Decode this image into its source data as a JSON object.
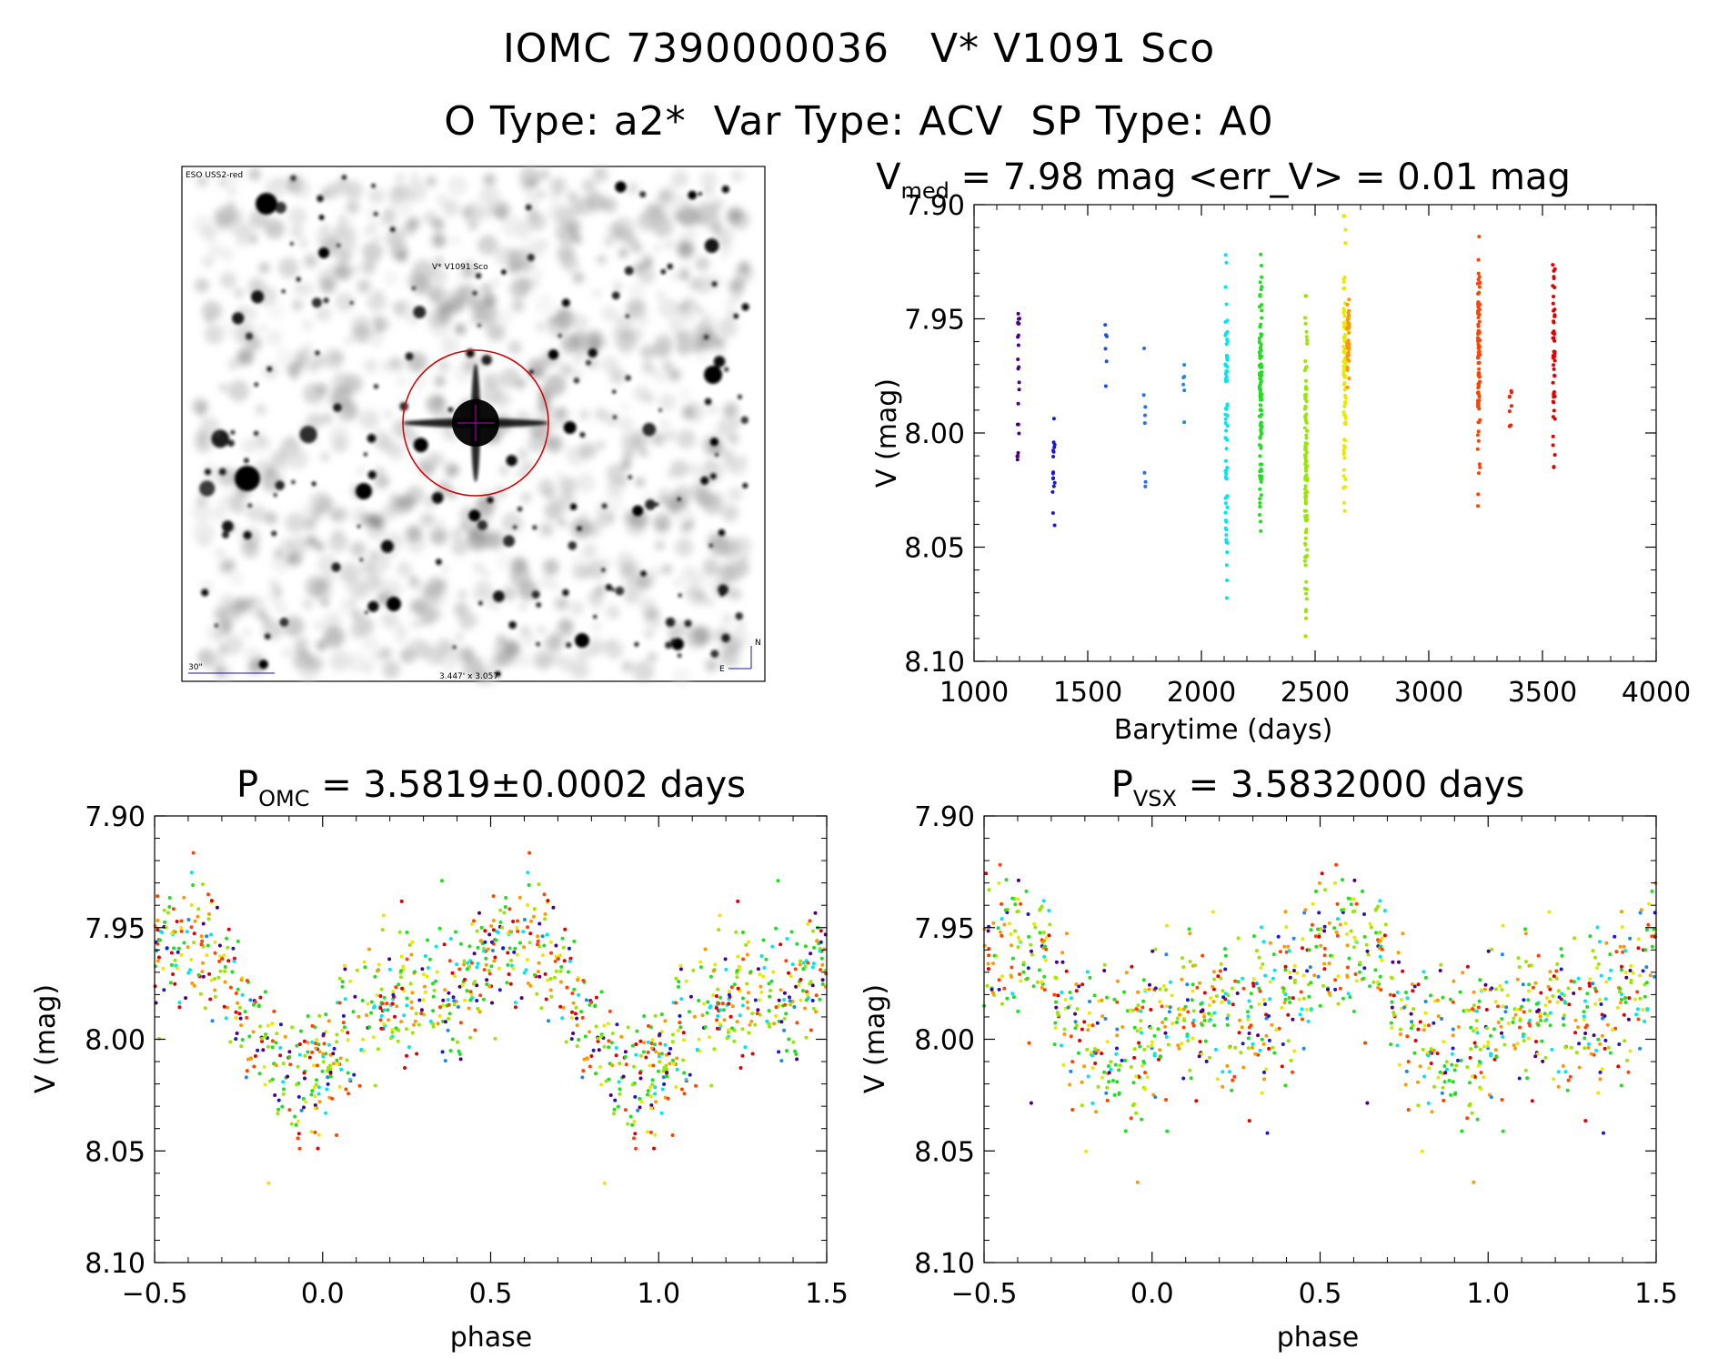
{
  "header": {
    "line1": "IOMC 7390000036   V* V1091 Sco",
    "line2": "O Type: a2*  Var Type: ACV  SP Type: A0"
  },
  "finder": {
    "survey_label": "ESO USS2-red",
    "target_label": "V* V1091 Sco",
    "scale_label": "30\"",
    "fov_label": "3.447' x 3.057'",
    "north_label": "N",
    "east_label": "E",
    "circle_color": "#cc0000"
  },
  "chart_data": [
    {
      "id": "lightcurve",
      "type": "scatter",
      "title_parts": {
        "main": "V",
        "sub": "med",
        "rest": " = 7.98 mag <err_V> = 0.01 mag"
      },
      "xlabel": "Barytime (days)",
      "ylabel": "V (mag)",
      "xlim": [
        1000,
        4000
      ],
      "ylim": [
        8.1,
        7.9
      ],
      "y_inverted": true,
      "xticks": [
        1000,
        1500,
        2000,
        2500,
        3000,
        3500,
        4000
      ],
      "yticks": [
        7.9,
        7.95,
        8.0,
        8.05,
        8.1
      ],
      "colorscale": "time (purple to red)",
      "groups": [
        {
          "x": 1195,
          "n": 22,
          "ylo": 7.905,
          "yhi": 8.023,
          "color": "#4b0082"
        },
        {
          "x": 1350,
          "n": 16,
          "ylo": 7.978,
          "yhi": 8.042,
          "color": "#1a1acc"
        },
        {
          "x": 1580,
          "n": 6,
          "ylo": 7.93,
          "yhi": 8.002,
          "color": "#1f4fe0"
        },
        {
          "x": 1750,
          "n": 8,
          "ylo": 7.939,
          "yhi": 8.037,
          "color": "#2a6ef0"
        },
        {
          "x": 1925,
          "n": 6,
          "ylo": 7.961,
          "yhi": 7.999,
          "color": "#1e88e5"
        },
        {
          "x": 2110,
          "n": 70,
          "ylo": 7.922,
          "yhi": 8.078,
          "color": "#00e5ee"
        },
        {
          "x": 2260,
          "n": 110,
          "ylo": 7.917,
          "yhi": 8.043,
          "color": "#22dd22"
        },
        {
          "x": 2460,
          "n": 110,
          "ylo": 7.94,
          "yhi": 8.089,
          "color": "#99e600"
        },
        {
          "x": 2630,
          "n": 90,
          "ylo": 7.905,
          "yhi": 8.038,
          "color": "#e8e800"
        },
        {
          "x": 2645,
          "n": 40,
          "ylo": 7.935,
          "yhi": 7.98,
          "color": "#ff9900"
        },
        {
          "x": 3220,
          "n": 90,
          "ylo": 7.913,
          "yhi": 8.032,
          "color": "#ff4400"
        },
        {
          "x": 3360,
          "n": 8,
          "ylo": 7.972,
          "yhi": 8.011,
          "color": "#ee2200"
        },
        {
          "x": 3550,
          "n": 50,
          "ylo": 7.907,
          "yhi": 8.015,
          "color": "#e00000"
        }
      ]
    },
    {
      "id": "phase_omc",
      "type": "scatter",
      "title_parts": {
        "main": "P",
        "sub": "OMC",
        "rest": " = 3.5819±0.0002 days"
      },
      "xlabel": "phase",
      "ylabel": "V (mag)",
      "xlim": [
        -0.5,
        1.5
      ],
      "ylim": [
        8.1,
        7.9
      ],
      "y_inverted": true,
      "xticks": [
        -0.5,
        0.0,
        0.5,
        1.0,
        1.5
      ],
      "yticks": [
        7.9,
        7.95,
        8.0,
        8.05,
        8.1
      ],
      "period_days": 3.5819,
      "model": {
        "mean": 7.985,
        "amplitude": 0.028,
        "min_phase": 0.0,
        "max_phase": 0.65,
        "scatter": 0.022
      },
      "points_per_cycle": 560
    },
    {
      "id": "phase_vsx",
      "type": "scatter",
      "title_parts": {
        "main": "P",
        "sub": "VSX",
        "rest": " = 3.5832000 days"
      },
      "xlabel": "phase",
      "ylabel": "V (mag)",
      "xlim": [
        -0.5,
        1.5
      ],
      "ylim": [
        8.1,
        7.9
      ],
      "y_inverted": true,
      "xticks": [
        -0.5,
        0.0,
        0.5,
        1.0,
        1.5
      ],
      "yticks": [
        7.9,
        7.95,
        8.0,
        8.05,
        8.1
      ],
      "period_days": 3.5832,
      "model": {
        "mean": 7.985,
        "amplitude": 0.024,
        "min_phase": 0.0,
        "max_phase": 0.6,
        "scatter": 0.025
      },
      "points_per_cycle": 560
    }
  ],
  "series_colors": [
    "#4b0082",
    "#1a1acc",
    "#1e88e5",
    "#00e5ee",
    "#22dd22",
    "#99e600",
    "#e8e800",
    "#ff9900",
    "#ff4400",
    "#e00000"
  ]
}
